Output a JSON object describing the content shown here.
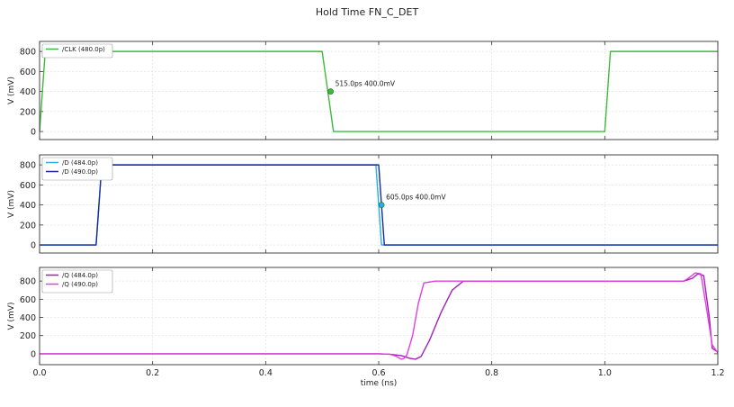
{
  "figure": {
    "title": "Hold Time FN_C_DET",
    "xlabel": "time (ns)"
  },
  "chart_data": [
    {
      "type": "line",
      "title": "Hold Time FN_C_DET",
      "xlabel": "",
      "ylabel": "V (mV)",
      "xlim": [
        0.0,
        1.2
      ],
      "ylim": [
        -80,
        900
      ],
      "yticks": [
        0,
        200,
        400,
        600,
        800
      ],
      "xticks": [
        0.0,
        0.2,
        0.4,
        0.6,
        0.8,
        1.0,
        1.2
      ],
      "grid": true,
      "legend": "top-left",
      "series": [
        {
          "name": "/CLK (480.0p)",
          "color": "#3dbb3d",
          "x": [
            0.0,
            0.01,
            0.5,
            0.52,
            1.0,
            1.01,
            1.2
          ],
          "y": [
            0,
            800,
            800,
            0,
            0,
            800,
            800
          ]
        }
      ],
      "annotations": [
        {
          "text": "515.0ps 400.0mV",
          "x": 0.515,
          "y": 400,
          "color": "#3dbb3d"
        }
      ]
    },
    {
      "type": "line",
      "xlabel": "",
      "ylabel": "V (mV)",
      "xlim": [
        0.0,
        1.2
      ],
      "ylim": [
        -80,
        900
      ],
      "yticks": [
        0,
        200,
        400,
        600,
        800
      ],
      "xticks": [
        0.0,
        0.2,
        0.4,
        0.6,
        0.8,
        1.0,
        1.2
      ],
      "grid": true,
      "legend": "top-left",
      "series": [
        {
          "name": "/D (484.0p)",
          "color": "#27b0e6",
          "x": [
            0.0,
            0.1,
            0.11,
            0.595,
            0.605,
            1.2
          ],
          "y": [
            0,
            0,
            800,
            800,
            0,
            0
          ]
        },
        {
          "name": "/D (490.0p)",
          "color": "#1a2a9c",
          "x": [
            0.0,
            0.1,
            0.11,
            0.6,
            0.61,
            1.2
          ],
          "y": [
            0,
            0,
            800,
            800,
            0,
            0
          ]
        }
      ],
      "annotations": [
        {
          "text": "605.0ps 400.0mV",
          "x": 0.605,
          "y": 400,
          "color": "#27b0e6"
        }
      ]
    },
    {
      "type": "line",
      "xlabel": "time (ns)",
      "ylabel": "V (mV)",
      "xlim": [
        0.0,
        1.2
      ],
      "ylim": [
        -120,
        950
      ],
      "yticks": [
        0,
        200,
        400,
        600,
        800
      ],
      "xticks": [
        0.0,
        0.2,
        0.4,
        0.6,
        0.8,
        1.0,
        1.2
      ],
      "grid": true,
      "legend": "top-left",
      "series": [
        {
          "name": "/Q (484.0p)",
          "color": "#a020b8",
          "x": [
            0.0,
            0.6,
            0.62,
            0.64,
            0.655,
            0.665,
            0.675,
            0.69,
            0.71,
            0.73,
            0.75,
            0.8,
            1.0,
            1.14,
            1.155,
            1.165,
            1.175,
            1.185,
            1.19,
            1.2
          ],
          "y": [
            0,
            0,
            -5,
            -20,
            -50,
            -60,
            -30,
            150,
            450,
            700,
            800,
            800,
            800,
            800,
            830,
            880,
            860,
            400,
            60,
            20
          ]
        },
        {
          "name": "/Q (490.0p)",
          "color": "#e040e0",
          "x": [
            0.0,
            0.6,
            0.62,
            0.63,
            0.64,
            0.645,
            0.65,
            0.66,
            0.67,
            0.68,
            0.7,
            0.8,
            1.0,
            1.14,
            1.15,
            1.16,
            1.17,
            1.18,
            1.19,
            1.2
          ],
          "y": [
            0,
            0,
            -5,
            -25,
            -60,
            -50,
            -10,
            200,
            550,
            780,
            800,
            800,
            800,
            800,
            840,
            890,
            880,
            500,
            100,
            10
          ]
        }
      ],
      "annotations": []
    }
  ]
}
